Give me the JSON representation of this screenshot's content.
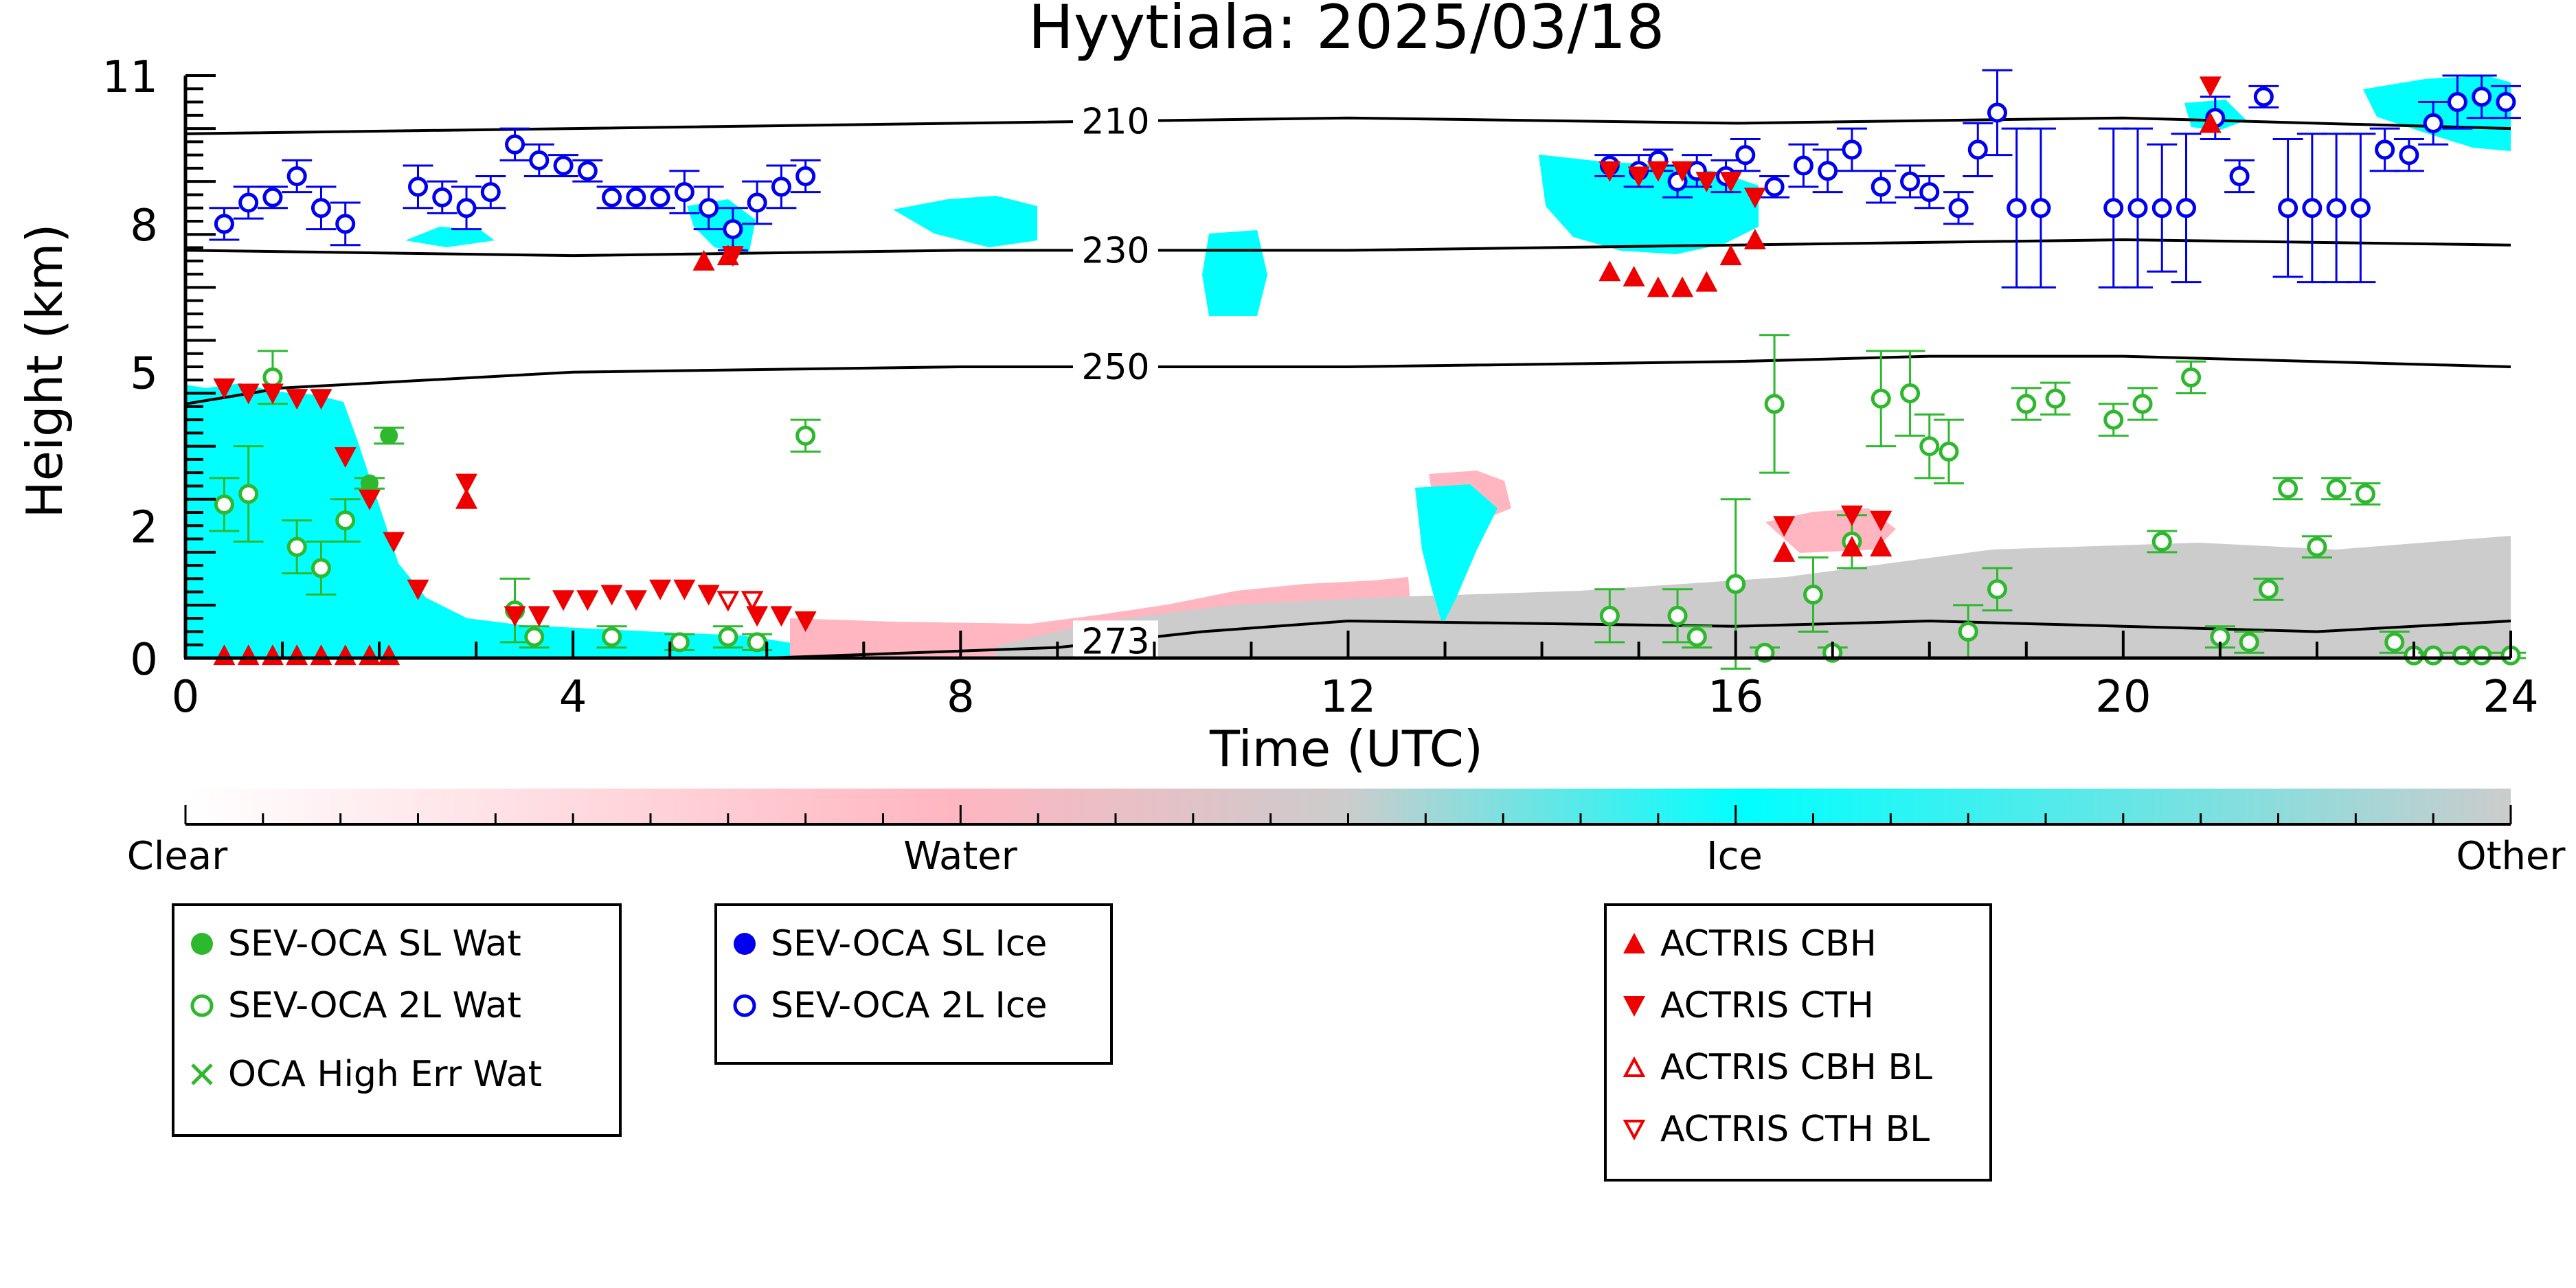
{
  "chart_data": {
    "type": "scatter",
    "title": "Hyytiala: 2025/03/18",
    "xlabel": "Time (UTC)",
    "ylabel": "Height (km)",
    "xlim": [
      0,
      24
    ],
    "ylim": [
      0,
      11
    ],
    "x_ticks": [
      "0",
      "4",
      "8",
      "12",
      "16",
      "20",
      "24"
    ],
    "y_ticks": [
      "0",
      "2",
      "5",
      "8",
      "11"
    ],
    "y_tick_heights_km": [
      0,
      2.5,
      5.4,
      8.2,
      11
    ],
    "y_tick_labels_shown": [
      "0",
      "2",
      "5",
      "8",
      "11"
    ],
    "isotherms": [
      {
        "label": "210",
        "label_x": 9.6,
        "points": [
          [
            0,
            9.9
          ],
          [
            4,
            10.0
          ],
          [
            8,
            10.1
          ],
          [
            12,
            10.2
          ],
          [
            16,
            10.1
          ],
          [
            20,
            10.2
          ],
          [
            24,
            10.0
          ]
        ]
      },
      {
        "label": "230",
        "label_x": 9.6,
        "points": [
          [
            0,
            7.7
          ],
          [
            4,
            7.6
          ],
          [
            8,
            7.7
          ],
          [
            12,
            7.7
          ],
          [
            16,
            7.8
          ],
          [
            20,
            7.9
          ],
          [
            24,
            7.8
          ]
        ]
      },
      {
        "label": "250",
        "label_x": 9.6,
        "points": [
          [
            0,
            4.8
          ],
          [
            1,
            5.1
          ],
          [
            4,
            5.4
          ],
          [
            8,
            5.5
          ],
          [
            12,
            5.5
          ],
          [
            16,
            5.6
          ],
          [
            18,
            5.7
          ],
          [
            20,
            5.7
          ],
          [
            24,
            5.5
          ]
        ]
      },
      {
        "label": "273",
        "label_x": 9.6,
        "points": [
          [
            0,
            0.0
          ],
          [
            6,
            0.0
          ],
          [
            9,
            0.2
          ],
          [
            10.5,
            0.5
          ],
          [
            12,
            0.7
          ],
          [
            16,
            0.6
          ],
          [
            18,
            0.7
          ],
          [
            20,
            0.6
          ],
          [
            22,
            0.5
          ],
          [
            24,
            0.7
          ]
        ]
      }
    ],
    "series": [
      {
        "name": "SEV-OCA SL Wat",
        "color": "#2db82d",
        "marker": "filled-circle",
        "points": [
          [
            2.1,
            4.2,
            0.15
          ],
          [
            1.9,
            3.3,
            0.1
          ]
        ]
      },
      {
        "name": "SEV-OCA 2L Wat",
        "color": "#2db82d",
        "marker": "open-circle",
        "points": [
          [
            0.4,
            2.9,
            0.5
          ],
          [
            0.65,
            3.1,
            0.9
          ],
          [
            0.9,
            5.3,
            0.5
          ],
          [
            1.15,
            2.1,
            0.5
          ],
          [
            1.4,
            1.7,
            0.5
          ],
          [
            1.65,
            2.6,
            0.4
          ],
          [
            3.4,
            0.9,
            0.6
          ],
          [
            3.6,
            0.4,
            0.2
          ],
          [
            4.4,
            0.4,
            0.2
          ],
          [
            5.1,
            0.3,
            0.15
          ],
          [
            5.6,
            0.4,
            0.2
          ],
          [
            5.9,
            0.3,
            0.15
          ],
          [
            6.4,
            4.2,
            0.3
          ],
          [
            14.7,
            0.8,
            0.5
          ],
          [
            15.4,
            0.8,
            0.5
          ],
          [
            15.6,
            0.4,
            0.2
          ],
          [
            16.0,
            1.4,
            1.6
          ],
          [
            16.3,
            0.1,
            0.1
          ],
          [
            16.4,
            4.8,
            1.3
          ],
          [
            16.8,
            1.2,
            0.7
          ],
          [
            17.0,
            0.1,
            0.1
          ],
          [
            17.2,
            2.2,
            0.5
          ],
          [
            17.5,
            4.9,
            0.9
          ],
          [
            17.8,
            5.0,
            0.8
          ],
          [
            18.0,
            4.0,
            0.6
          ],
          [
            18.2,
            3.9,
            0.6
          ],
          [
            18.4,
            0.5,
            0.5
          ],
          [
            18.7,
            1.3,
            0.4
          ],
          [
            19.0,
            4.8,
            0.3
          ],
          [
            19.3,
            4.9,
            0.3
          ],
          [
            19.9,
            4.5,
            0.3
          ],
          [
            20.2,
            4.8,
            0.3
          ],
          [
            20.4,
            2.2,
            0.2
          ],
          [
            20.7,
            5.3,
            0.3
          ],
          [
            21.0,
            0.4,
            0.2
          ],
          [
            21.3,
            0.3,
            0.2
          ],
          [
            21.5,
            1.3,
            0.2
          ],
          [
            21.7,
            3.2,
            0.2
          ],
          [
            22.0,
            2.1,
            0.2
          ],
          [
            22.2,
            3.2,
            0.2
          ],
          [
            22.5,
            3.1,
            0.2
          ],
          [
            22.8,
            0.3,
            0.2
          ],
          [
            23.0,
            0.05,
            0.05
          ],
          [
            23.2,
            0.05,
            0.05
          ],
          [
            23.5,
            0.05,
            0.05
          ],
          [
            23.7,
            0.05,
            0.05
          ],
          [
            24.0,
            0.05,
            0.05
          ]
        ]
      },
      {
        "name": "OCA High Err Wat",
        "color": "#2db82d",
        "marker": "x",
        "points": []
      },
      {
        "name": "SEV-OCA SL Ice",
        "color": "#0000ee",
        "marker": "filled-circle",
        "points": []
      },
      {
        "name": "SEV-OCA 2L Ice",
        "color": "#0000ee",
        "marker": "open-circle",
        "points": [
          [
            0.4,
            8.2,
            0.3
          ],
          [
            0.65,
            8.6,
            0.3
          ],
          [
            0.9,
            8.7,
            0.2
          ],
          [
            1.15,
            9.1,
            0.3
          ],
          [
            1.4,
            8.5,
            0.4
          ],
          [
            1.65,
            8.2,
            0.4
          ],
          [
            2.4,
            8.9,
            0.4
          ],
          [
            2.65,
            8.7,
            0.3
          ],
          [
            2.9,
            8.5,
            0.4
          ],
          [
            3.15,
            8.8,
            0.3
          ],
          [
            3.4,
            9.7,
            0.3
          ],
          [
            3.65,
            9.4,
            0.3
          ],
          [
            3.9,
            9.3,
            0.2
          ],
          [
            4.15,
            9.2,
            0.2
          ],
          [
            4.4,
            8.7,
            0.2
          ],
          [
            4.65,
            8.7,
            0.2
          ],
          [
            4.9,
            8.7,
            0.2
          ],
          [
            5.15,
            8.8,
            0.4
          ],
          [
            5.4,
            8.5,
            0.4
          ],
          [
            5.65,
            8.1,
            0.4
          ],
          [
            5.9,
            8.6,
            0.4
          ],
          [
            6.15,
            8.9,
            0.4
          ],
          [
            6.4,
            9.1,
            0.3
          ],
          [
            14.7,
            9.3,
            0.2
          ],
          [
            15.0,
            9.2,
            0.3
          ],
          [
            15.2,
            9.4,
            0.2
          ],
          [
            15.4,
            9.0,
            0.3
          ],
          [
            15.6,
            9.2,
            0.3
          ],
          [
            15.9,
            9.1,
            0.3
          ],
          [
            16.1,
            9.5,
            0.3
          ],
          [
            16.4,
            8.9,
            0.2
          ],
          [
            16.7,
            9.3,
            0.4
          ],
          [
            16.95,
            9.2,
            0.4
          ],
          [
            17.2,
            9.6,
            0.4
          ],
          [
            17.5,
            8.9,
            0.3
          ],
          [
            17.8,
            9.0,
            0.3
          ],
          [
            18.0,
            8.8,
            0.3
          ],
          [
            18.3,
            8.5,
            0.3
          ],
          [
            18.5,
            9.6,
            0.5
          ],
          [
            18.7,
            10.3,
            0.8
          ],
          [
            18.9,
            8.5,
            1.5
          ],
          [
            19.15,
            8.5,
            1.5
          ],
          [
            19.9,
            8.5,
            1.5
          ],
          [
            20.15,
            8.5,
            1.5
          ],
          [
            20.4,
            8.5,
            1.2
          ],
          [
            20.65,
            8.5,
            1.4
          ],
          [
            20.95,
            10.2,
            0.4
          ],
          [
            21.2,
            9.1,
            0.3
          ],
          [
            21.45,
            10.6,
            0.2
          ],
          [
            21.7,
            8.5,
            1.3
          ],
          [
            21.95,
            8.5,
            1.4
          ],
          [
            22.2,
            8.5,
            1.4
          ],
          [
            22.45,
            8.5,
            1.4
          ],
          [
            22.7,
            9.6,
            0.4
          ],
          [
            22.95,
            9.5,
            0.3
          ],
          [
            23.2,
            10.1,
            0.4
          ],
          [
            23.45,
            10.5,
            0.5
          ],
          [
            23.7,
            10.6,
            0.4
          ],
          [
            23.95,
            10.5,
            0.3
          ]
        ]
      },
      {
        "name": "ACTRIS CBH",
        "color": "#ee0000",
        "marker": "triangle-up",
        "points": [
          [
            0.4,
            0.05
          ],
          [
            0.65,
            0.05
          ],
          [
            0.9,
            0.05
          ],
          [
            1.15,
            0.05
          ],
          [
            1.4,
            0.05
          ],
          [
            1.65,
            0.05
          ],
          [
            1.9,
            0.05
          ],
          [
            2.1,
            0.05
          ],
          [
            2.9,
            3.0
          ],
          [
            5.6,
            7.6
          ],
          [
            5.35,
            7.5
          ],
          [
            14.7,
            7.3
          ],
          [
            14.95,
            7.2
          ],
          [
            15.2,
            7.0
          ],
          [
            15.45,
            7.0
          ],
          [
            15.7,
            7.1
          ],
          [
            15.95,
            7.6
          ],
          [
            16.2,
            7.9
          ],
          [
            16.5,
            2.0
          ],
          [
            17.2,
            2.1
          ],
          [
            17.5,
            2.1
          ],
          [
            20.9,
            10.1
          ]
        ]
      },
      {
        "name": "ACTRIS CTH",
        "color": "#ee0000",
        "marker": "triangle-down",
        "points": [
          [
            0.4,
            5.1
          ],
          [
            0.65,
            5.0
          ],
          [
            0.9,
            5.0
          ],
          [
            1.15,
            4.9
          ],
          [
            1.4,
            4.9
          ],
          [
            1.65,
            3.8
          ],
          [
            1.9,
            3.0
          ],
          [
            2.15,
            2.2
          ],
          [
            2.4,
            1.3
          ],
          [
            2.9,
            3.3
          ],
          [
            3.4,
            0.8
          ],
          [
            3.65,
            0.8
          ],
          [
            3.9,
            1.1
          ],
          [
            4.15,
            1.1
          ],
          [
            4.4,
            1.2
          ],
          [
            4.65,
            1.1
          ],
          [
            4.9,
            1.3
          ],
          [
            5.15,
            1.3
          ],
          [
            5.4,
            1.2
          ],
          [
            5.65,
            7.6
          ],
          [
            5.9,
            0.8
          ],
          [
            6.15,
            0.8
          ],
          [
            6.4,
            0.7
          ],
          [
            14.7,
            9.2
          ],
          [
            15.0,
            9.1
          ],
          [
            15.2,
            9.2
          ],
          [
            15.45,
            9.2
          ],
          [
            15.7,
            9.0
          ],
          [
            15.95,
            9.0
          ],
          [
            16.2,
            8.7
          ],
          [
            16.5,
            2.5
          ],
          [
            17.2,
            2.7
          ],
          [
            17.5,
            2.6
          ],
          [
            20.9,
            10.8
          ]
        ]
      },
      {
        "name": "ACTRIS CBH BL",
        "color": "#ee0000",
        "marker": "open-triangle-up",
        "points": []
      },
      {
        "name": "ACTRIS CTH BL",
        "color": "#ee0000",
        "marker": "open-triangle-down",
        "points": [
          [
            5.6,
            1.1
          ],
          [
            5.85,
            1.1
          ]
        ]
      }
    ],
    "colorbar": {
      "labels": [
        "Clear",
        "Water",
        "Ice",
        "Other"
      ],
      "colors": [
        "#ffffff",
        "#ffb6c1",
        "#00ffff",
        "#cccccc"
      ]
    },
    "legend_placement": "below"
  },
  "legend_groups": [
    [
      "SEV-OCA SL Wat",
      "SEV-OCA 2L Wat",
      "OCA High Err Wat"
    ],
    [
      "SEV-OCA SL Ice",
      "SEV-OCA 2L Ice"
    ],
    [
      "ACTRIS CBH",
      "ACTRIS CTH",
      "ACTRIS CBH BL",
      "ACTRIS CTH BL"
    ]
  ]
}
